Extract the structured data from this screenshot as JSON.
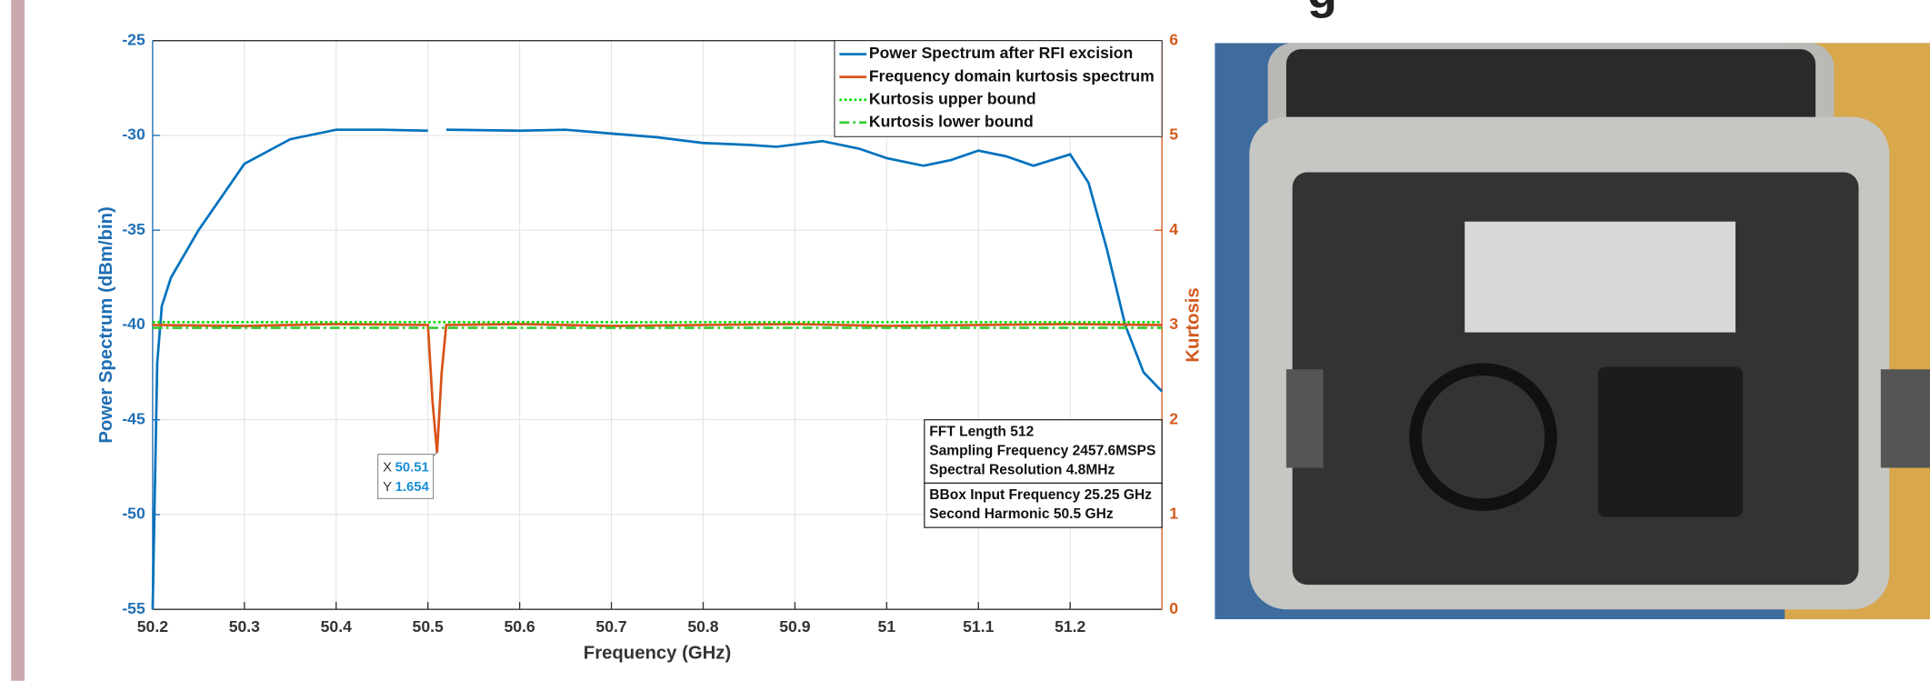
{
  "slide": {
    "title_fragment": "g"
  },
  "chart_data": {
    "type": "line",
    "xlabel": "Frequency (GHz)",
    "ylabel": "Power Spectrum (dBm/bin)",
    "y2label": "Kurtosis",
    "xlim": [
      50.2,
      51.3
    ],
    "ylim": [
      -55,
      -25
    ],
    "y2lim": [
      0,
      6
    ],
    "xticks": [
      50.2,
      50.3,
      50.4,
      50.5,
      50.6,
      50.7,
      50.8,
      50.9,
      51,
      51.1,
      51.2
    ],
    "yticks": [
      -25,
      -30,
      -35,
      -40,
      -45,
      -50,
      -55
    ],
    "y2ticks": [
      0,
      1,
      2,
      3,
      4,
      5,
      6
    ],
    "grid": true,
    "legend": "upper right",
    "series": [
      {
        "name": "Power Spectrum after RFI excision",
        "color": "#0072bd",
        "style": "solid",
        "x": [
          50.2,
          50.205,
          50.21,
          50.22,
          50.25,
          50.3,
          50.35,
          50.4,
          50.45,
          50.5,
          50.51,
          50.52,
          50.6,
          50.65,
          50.7,
          50.75,
          50.8,
          50.85,
          50.88,
          50.93,
          50.97,
          51.0,
          51.04,
          51.07,
          51.1,
          51.13,
          51.16,
          51.2,
          51.22,
          51.24,
          51.26,
          51.28,
          51.3
        ],
        "values": [
          -55,
          -42,
          -39,
          -37.5,
          -35,
          -31.5,
          -30.2,
          -29.7,
          -29.7,
          -29.75,
          null,
          -29.7,
          -29.75,
          -29.7,
          -29.9,
          -30.1,
          -30.4,
          -30.5,
          -30.6,
          -30.3,
          -30.7,
          -31.2,
          -31.6,
          -31.3,
          -30.8,
          -31.1,
          -31.6,
          -31.0,
          -32.5,
          -36,
          -40,
          -42.5,
          -43.5
        ]
      },
      {
        "name": "Frequency domain kurtosis spectrum",
        "color": "#d95319",
        "style": "solid",
        "axis": "y2",
        "x": [
          50.2,
          50.3,
          50.4,
          50.5,
          50.505,
          50.51,
          50.515,
          50.52,
          50.6,
          50.7,
          50.8,
          50.9,
          51.0,
          51.1,
          51.2,
          51.3
        ],
        "values": [
          3.0,
          2.99,
          3.01,
          3.0,
          2.2,
          1.654,
          2.5,
          3.0,
          3.01,
          2.99,
          3.0,
          3.01,
          2.99,
          3.0,
          3.01,
          3.0
        ]
      },
      {
        "name": "Kurtosis upper bound",
        "color": "#00e000",
        "style": "dotted",
        "axis": "y2",
        "x": [
          50.2,
          51.3
        ],
        "values": [
          3.03,
          3.03
        ]
      },
      {
        "name": "Kurtosis lower bound",
        "color": "#33cc33",
        "style": "dashdot",
        "axis": "y2",
        "x": [
          50.2,
          51.3
        ],
        "values": [
          2.97,
          2.97
        ]
      }
    ],
    "datatip": {
      "x_name": "X",
      "x": 50.51,
      "y_name": "Y",
      "y": 1.654
    },
    "info_boxes": [
      [
        "FFT Length 512",
        "Sampling Frequency 2457.6MSPS",
        "Spectral Resolution 4.8MHz"
      ],
      [
        "BBox Input Frequency 25.25 GHz",
        "Second Harmonic 50.5 GHz"
      ]
    ]
  }
}
